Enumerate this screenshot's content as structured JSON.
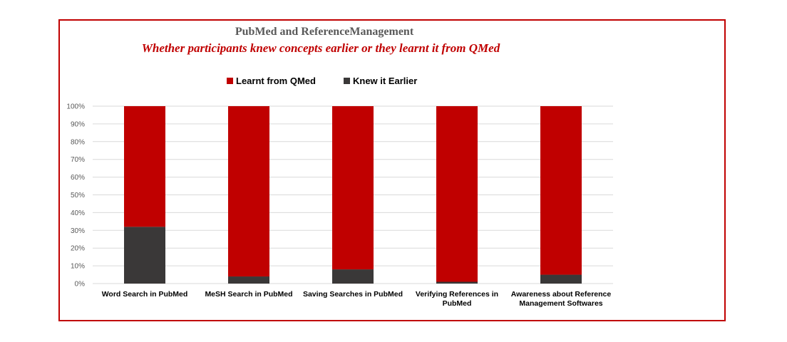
{
  "chart_data": {
    "type": "bar",
    "stacked": true,
    "normalized": true,
    "title": "PubMed and ReferenceManagement",
    "subtitle": "Whether participants knew concepts earlier or they learnt it from QMed",
    "categories": [
      [
        "Word Search in PubMed"
      ],
      [
        "MeSH Search in PubMed"
      ],
      [
        "Saving Searches in PubMed"
      ],
      [
        "Verifying References in",
        "PubMed"
      ],
      [
        "Awareness about Reference",
        "Management Softwares"
      ]
    ],
    "series": [
      {
        "name": "Knew it Earlier",
        "color": "#3a3838",
        "values": [
          32,
          4,
          8,
          1,
          5
        ]
      },
      {
        "name": "Learnt from QMed",
        "color": "#c00000",
        "values": [
          68,
          96,
          92,
          99,
          95
        ]
      }
    ],
    "legend_order": [
      "Learnt from QMed",
      "Knew it Earlier"
    ],
    "legend_position": "top",
    "yticks": [
      "0%",
      "10%",
      "20%",
      "30%",
      "40%",
      "50%",
      "60%",
      "70%",
      "80%",
      "90%",
      "100%"
    ],
    "ylim": [
      0,
      100
    ],
    "grid": true,
    "colors": {
      "frame": "#c00000",
      "title": "#595959",
      "subtitle": "#c00000",
      "grid": "#d9d9d9"
    }
  }
}
